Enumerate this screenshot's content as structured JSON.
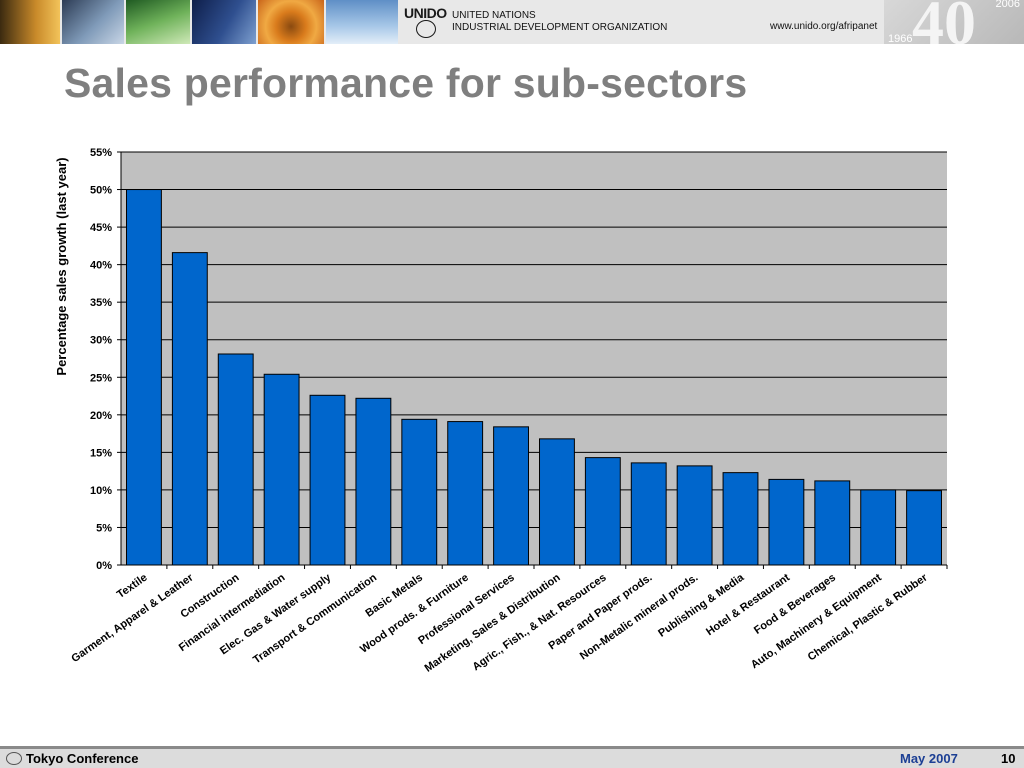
{
  "header": {
    "org_line1": "UNITED NATIONS",
    "org_line2": "INDUSTRIAL DEVELOPMENT ORGANIZATION",
    "logo_text": "UNIDO",
    "website": "www.unido.org/afripanet",
    "anniversary_number": "40",
    "anniversary_year_end": "2006",
    "anniversary_year_start": "1966"
  },
  "slide": {
    "title": "Sales performance for sub-sectors"
  },
  "footer": {
    "conference": "Tokyo Conference",
    "date": "May 2007",
    "page": "10"
  },
  "colors": {
    "bar": "#0066cc",
    "plot_bg": "#c0c0c0",
    "title": "#7f7f7f",
    "footer_date": "#1c3f94"
  },
  "chart_data": {
    "type": "bar",
    "title": "",
    "xlabel": "",
    "ylabel": "Percentage sales growth (last year)",
    "ylim": [
      0,
      55
    ],
    "yticks": [
      "0%",
      "5%",
      "10%",
      "15%",
      "20%",
      "25%",
      "30%",
      "35%",
      "40%",
      "45%",
      "50%",
      "55%"
    ],
    "grid": true,
    "categories": [
      "Textile",
      "Garment, Apparel & Leather",
      "Construction",
      "Financial intermediation",
      "Elec. Gas & Water supply",
      "Transport & Communication",
      "Basic Metals",
      "Wood prods. & Furniture",
      "Professional Services",
      "Marketing, Sales & Distribution",
      "Agric., Fish., & Nat. Resources",
      "Paper and Paper prods.",
      "Non-Metalic mineral prods.",
      "Publishing & Media",
      "Hotel & Restaurant",
      "Food & Beverages",
      "Auto, Machinery & Equipment",
      "Chemical, Plastic & Rubber"
    ],
    "values": [
      50.0,
      41.6,
      28.1,
      25.4,
      22.6,
      22.2,
      19.4,
      19.1,
      18.4,
      16.8,
      14.3,
      13.6,
      13.2,
      12.3,
      11.4,
      11.2,
      10.0,
      9.9
    ]
  }
}
